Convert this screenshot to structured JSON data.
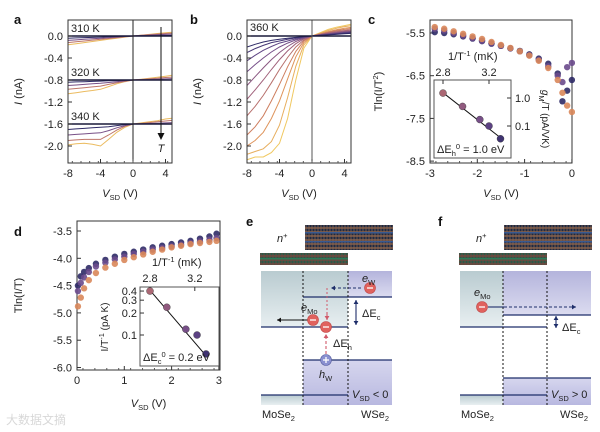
{
  "figure": {
    "panel_labels": {
      "a": "a",
      "b": "b",
      "c": "c",
      "d": "d",
      "e": "e",
      "f": "f"
    },
    "watermark": "大数据文摘",
    "colors": {
      "dark": "#2e2a66",
      "purple": "#6a4a8c",
      "mauve": "#a0607a",
      "orange": "#d9875a",
      "yellow": "#f0c860",
      "delta_h": "#d05a6a",
      "delta_c": "#7d8cc0"
    }
  },
  "chart_data": [
    {
      "panel": "a",
      "type": "line",
      "ylabel": {
        "main": "I",
        "unit": " (nA)"
      },
      "xlabel": {
        "main": "V",
        "sub": "SD",
        "unit": " (V)"
      },
      "xlim": [
        -8,
        5
      ],
      "ylim": [
        -2.3,
        0.3
      ],
      "xticks": [
        "-8",
        "-4",
        "0",
        "4"
      ],
      "xtick_values": [
        -8,
        -4,
        0,
        4
      ],
      "yticks": [
        "0.0",
        "-0.4",
        "-0.8",
        "-1.2",
        "-1.6",
        "-2.0"
      ],
      "ytick_values": [
        0,
        -0.4,
        -0.8,
        -1.2,
        -1.6,
        -2.0
      ],
      "arrow_label": "T",
      "x": [
        -8,
        -7,
        -6,
        -5,
        -4,
        -3,
        -2,
        -1,
        0,
        1,
        2,
        3,
        4,
        5
      ],
      "groups": [
        {
          "label": "310 K",
          "series": [
            [
              -0.04,
              -0.035,
              -0.03,
              -0.025,
              -0.02,
              -0.015,
              -0.01,
              -0.005,
              0,
              0.003,
              0.005,
              0.008,
              0.01,
              0.012
            ],
            [
              -0.08,
              -0.07,
              -0.06,
              -0.05,
              -0.04,
              -0.03,
              -0.02,
              -0.01,
              0,
              0.008,
              0.015,
              0.022,
              0.03,
              0.035
            ],
            [
              -0.12,
              -0.105,
              -0.09,
              -0.075,
              -0.06,
              -0.045,
              -0.03,
              -0.015,
              0,
              0.012,
              0.025,
              0.035,
              0.045,
              0.055
            ],
            [
              -0.16,
              -0.14,
              -0.12,
              -0.1,
              -0.08,
              -0.06,
              -0.04,
              -0.02,
              0,
              0.015,
              0.03,
              0.045,
              0.06,
              0.07
            ]
          ]
        },
        {
          "label": "320 K",
          "series": [
            [
              -0.84,
              -0.835,
              -0.83,
              -0.825,
              -0.82,
              -0.815,
              -0.81,
              -0.805,
              -0.8,
              -0.8,
              -0.8,
              -0.8,
              -0.8,
              -0.8
            ],
            [
              -0.9,
              -0.89,
              -0.88,
              -0.87,
              -0.86,
              -0.845,
              -0.83,
              -0.815,
              -0.8,
              -0.795,
              -0.79,
              -0.785,
              -0.78,
              -0.775
            ],
            [
              -0.97,
              -0.955,
              -0.94,
              -0.925,
              -0.91,
              -0.88,
              -0.85,
              -0.825,
              -0.8,
              -0.79,
              -0.78,
              -0.77,
              -0.755,
              -0.745
            ],
            [
              -1.05,
              -1.03,
              -1.01,
              -0.99,
              -0.97,
              -0.92,
              -0.87,
              -0.83,
              -0.8,
              -0.785,
              -0.77,
              -0.75,
              -0.73,
              -0.71
            ]
          ]
        },
        {
          "label": "340 K",
          "series": [
            [
              -1.7,
              -1.69,
              -1.68,
              -1.67,
              -1.66,
              -1.65,
              -1.63,
              -1.61,
              -1.6,
              -1.6,
              -1.6,
              -1.6,
              -1.6,
              -1.6
            ],
            [
              -1.8,
              -1.79,
              -1.78,
              -1.77,
              -1.76,
              -1.72,
              -1.67,
              -1.63,
              -1.6,
              -1.595,
              -1.59,
              -1.585,
              -1.58,
              -1.575
            ],
            [
              -1.9,
              -1.89,
              -1.88,
              -1.88,
              -1.88,
              -1.8,
              -1.71,
              -1.64,
              -1.6,
              -1.59,
              -1.575,
              -1.56,
              -1.545,
              -1.53
            ],
            [
              -1.98,
              -1.96,
              -1.95,
              -1.97,
              -2.0,
              -1.88,
              -1.75,
              -1.66,
              -1.6,
              -1.58,
              -1.56,
              -1.54,
              -1.51,
              -1.49
            ]
          ]
        }
      ]
    },
    {
      "panel": "b",
      "type": "line",
      "ylabel": {
        "main": "I",
        "unit": " (nA)"
      },
      "xlabel": {
        "main": "V",
        "sub": "SD",
        "unit": " (V)"
      },
      "xlim": [
        -8,
        5
      ],
      "ylim": [
        -2.3,
        0.3
      ],
      "xticks": [
        "-8",
        "-4",
        "0",
        "4"
      ],
      "xtick_values": [
        -8,
        -4,
        0,
        4
      ],
      "yticks": [
        "0.0",
        "-0.4",
        "-0.8",
        "-1.2",
        "-1.6",
        "-2.0"
      ],
      "ytick_values": [
        0,
        -0.4,
        -0.8,
        -1.2,
        -1.6,
        -2.0
      ],
      "annotation": "360 K",
      "x": [
        -8,
        -7,
        -6,
        -5,
        -4,
        -3,
        -2,
        -1,
        0,
        1,
        2,
        3,
        4,
        5
      ],
      "series": [
        [
          -0.2,
          -0.15,
          -0.11,
          -0.08,
          -0.06,
          -0.04,
          -0.025,
          -0.01,
          0,
          0.01,
          0.02,
          0.03,
          0.04,
          0.05
        ],
        [
          -0.3,
          -0.23,
          -0.17,
          -0.12,
          -0.09,
          -0.06,
          -0.035,
          -0.015,
          0,
          0.012,
          0.025,
          0.037,
          0.05,
          0.06
        ],
        [
          -0.45,
          -0.35,
          -0.26,
          -0.19,
          -0.13,
          -0.09,
          -0.05,
          -0.02,
          0,
          0.015,
          0.03,
          0.045,
          0.06,
          0.07
        ],
        [
          -0.65,
          -0.52,
          -0.4,
          -0.29,
          -0.2,
          -0.13,
          -0.07,
          -0.03,
          0,
          0.018,
          0.035,
          0.05,
          0.065,
          0.08
        ],
        [
          -0.9,
          -0.74,
          -0.58,
          -0.43,
          -0.3,
          -0.19,
          -0.1,
          -0.04,
          0,
          0.02,
          0.04,
          0.06,
          0.075,
          0.09
        ],
        [
          -1.15,
          -0.98,
          -0.8,
          -0.61,
          -0.43,
          -0.27,
          -0.14,
          -0.05,
          0,
          0.025,
          0.05,
          0.07,
          0.09,
          0.1
        ],
        [
          -1.45,
          -1.28,
          -1.08,
          -0.85,
          -0.61,
          -0.39,
          -0.2,
          -0.07,
          0,
          0.03,
          0.06,
          0.085,
          0.1,
          0.12
        ],
        [
          -1.8,
          -1.65,
          -1.45,
          -1.18,
          -0.88,
          -0.56,
          -0.28,
          -0.09,
          0,
          0.035,
          0.07,
          0.1,
          0.12,
          0.14
        ],
        [
          -2.0,
          -1.9,
          -1.75,
          -1.5,
          -1.18,
          -0.78,
          -0.38,
          -0.12,
          0,
          0.04,
          0.08,
          0.115,
          0.14,
          0.16
        ],
        [
          -2.15,
          -2.1,
          -2.05,
          -1.92,
          -1.62,
          -1.12,
          -0.55,
          -0.16,
          0,
          0.05,
          0.1,
          0.14,
          0.17,
          0.19
        ],
        [
          -2.25,
          -2.2,
          -2.2,
          -2.12,
          -1.95,
          -1.5,
          -0.8,
          -0.22,
          0,
          0.06,
          0.12,
          0.16,
          0.19,
          0.22
        ]
      ]
    },
    {
      "panel": "c",
      "type": "scatter",
      "ylabel": {
        "main": "Tln(I/T",
        "sup": "2",
        "end": ")"
      },
      "xlabel": {
        "main": "V",
        "sub": "SD",
        "unit": " (V)"
      },
      "xlim": [
        -3,
        0
      ],
      "ylim": [
        -8.8,
        -5.2
      ],
      "xticks": [
        "-3",
        "-2",
        "-1",
        "0"
      ],
      "xtick_values": [
        -3,
        -2,
        -1,
        0
      ],
      "yticks": [
        "-5.5",
        "-6.5",
        "-7.5",
        "-8.5"
      ],
      "ytick_values": [
        -5.5,
        -6.5,
        -7.5,
        -8.5
      ],
      "x": [
        -2.9,
        -2.7,
        -2.5,
        -2.3,
        -2.1,
        -1.9,
        -1.7,
        -1.5,
        -1.3,
        -1.1,
        -0.9,
        -0.7,
        -0.5,
        -0.3,
        -0.2,
        -0.1,
        0
      ],
      "series": [
        [
          -5.48,
          -5.5,
          -5.53,
          -5.58,
          -5.63,
          -5.69,
          -5.75,
          -5.8,
          -5.86,
          -5.92,
          -6.0,
          -6.1,
          -6.22,
          -6.45,
          -7.1,
          -6.85,
          -6.6
        ],
        [
          -5.4,
          -5.44,
          -5.5,
          -5.56,
          -5.62,
          -5.68,
          -5.74,
          -5.8,
          -5.86,
          -5.93,
          -6.02,
          -6.13,
          -6.28,
          -6.5,
          -6.65,
          -6.3,
          -6.2
        ],
        [
          -5.36,
          -5.4,
          -5.46,
          -5.52,
          -5.58,
          -5.64,
          -5.71,
          -5.78,
          -5.85,
          -5.93,
          -6.03,
          -6.15,
          -6.32,
          -6.6,
          -6.9,
          -7.2,
          -7.35
        ]
      ],
      "inset": {
        "type": "scatter-log",
        "xlabel": {
          "main": "1/T",
          "unit": " (mK",
          "sup": "-1",
          "end": ")"
        },
        "ylabel": {
          "main": "g",
          "sub": "M",
          "unit": "/T (pA/VK)"
        },
        "xticks": [
          "2.8",
          "3.2"
        ],
        "xtick_values": [
          2.8,
          3.2
        ],
        "yticks": [
          "1.0",
          "0.1"
        ],
        "ytick_values": [
          1.0,
          0.1
        ],
        "x": [
          2.8,
          2.97,
          3.12,
          3.2,
          3.3
        ],
        "y": [
          1.5,
          0.5,
          0.17,
          0.1,
          0.035
        ],
        "fit": {
          "x": [
            2.8,
            3.3
          ],
          "y": [
            1.55,
            0.038
          ]
        },
        "annotation": {
          "main": "ΔE",
          "sub": "h",
          "sup": "0",
          "rest": " = 1.0 eV"
        }
      }
    },
    {
      "panel": "d",
      "type": "scatter",
      "ylabel": {
        "main": "Tln(I/T)"
      },
      "xlabel": {
        "main": "V",
        "sub": "SD",
        "unit": " (V)"
      },
      "xlim": [
        0,
        3
      ],
      "ylim": [
        -6.1,
        -3.3
      ],
      "xticks": [
        "0",
        "1",
        "2",
        "3"
      ],
      "xtick_values": [
        0,
        1,
        2,
        3
      ],
      "yticks": [
        "-3.5",
        "-4.0",
        "-4.5",
        "-5.0",
        "-5.5",
        "-6.0"
      ],
      "ytick_values": [
        -3.5,
        -4.0,
        -4.5,
        -5.0,
        -5.5,
        -6.0
      ],
      "x": [
        0.02,
        0.08,
        0.15,
        0.25,
        0.4,
        0.6,
        0.8,
        1.0,
        1.2,
        1.4,
        1.6,
        1.8,
        2.0,
        2.2,
        2.4,
        2.6,
        2.8,
        2.95
      ],
      "series": [
        [
          -4.5,
          -4.33,
          -4.25,
          -4.18,
          -4.1,
          -4.03,
          -3.97,
          -3.92,
          -3.88,
          -3.84,
          -3.8,
          -3.77,
          -3.74,
          -3.71,
          -3.68,
          -3.64,
          -3.6,
          -3.55
        ],
        [
          -4.6,
          -4.45,
          -4.35,
          -4.25,
          -4.15,
          -4.08,
          -4.02,
          -3.97,
          -3.92,
          -3.88,
          -3.84,
          -3.81,
          -3.78,
          -3.75,
          -3.72,
          -3.69,
          -3.66,
          -3.63
        ],
        [
          -4.88,
          -4.72,
          -4.55,
          -4.4,
          -4.27,
          -4.17,
          -4.1,
          -4.03,
          -3.98,
          -3.93,
          -3.88,
          -3.84,
          -3.8,
          -3.77,
          -3.74,
          -3.72,
          -3.7,
          -3.68
        ]
      ],
      "inset": {
        "type": "scatter-log",
        "xlabel": {
          "main": "1/T",
          "unit": " (mK",
          "sup": "-1",
          "end": ")"
        },
        "ylabel": {
          "main": "I/T",
          "unit": " (pA K",
          "sup": "-1",
          "end": ")"
        },
        "xticks": [
          "2.8",
          "3.2"
        ],
        "xtick_values": [
          2.8,
          3.2
        ],
        "yticks": [
          "0.4",
          "0.3",
          "0.2",
          "0.1"
        ],
        "ytick_values": [
          0.4,
          0.3,
          0.2,
          0.1
        ],
        "x": [
          2.8,
          2.95,
          3.12,
          3.22,
          3.3
        ],
        "y": [
          0.4,
          0.24,
          0.12,
          0.1,
          0.055
        ],
        "fit": {
          "x": [
            2.8,
            3.3
          ],
          "y": [
            0.41,
            0.052
          ]
        },
        "annotation": {
          "main": "ΔE",
          "sub": "c",
          "sup": "0",
          "rest": " = 0.2 eV"
        }
      }
    }
  ],
  "diagrams": {
    "e": {
      "contact": {
        "main": "n",
        "sup": "+"
      },
      "electron_w": {
        "main": "e",
        "sub": "W"
      },
      "electron_mo": {
        "main": "e",
        "sub": "Mo"
      },
      "hole_w": {
        "main": "h",
        "sub": "W"
      },
      "delta_c": {
        "main": "ΔE",
        "sub": "c"
      },
      "delta_h": {
        "main": "ΔE",
        "sub": "h"
      },
      "bias": {
        "main": "V",
        "sub": "SD",
        "rest": " < 0"
      },
      "left_material": {
        "main": "MoSe",
        "sub": "2"
      },
      "right_material": {
        "main": "WSe",
        "sub": "2"
      }
    },
    "f": {
      "contact": {
        "main": "n",
        "sup": "+"
      },
      "electron_mo": {
        "main": "e",
        "sub": "Mo"
      },
      "delta_c": {
        "main": "ΔE",
        "sub": "c"
      },
      "bias": {
        "main": "V",
        "sub": "SD",
        "rest": " > 0"
      },
      "left_material": {
        "main": "MoSe",
        "sub": "2"
      },
      "right_material": {
        "main": "WSe",
        "sub": "2"
      }
    }
  }
}
